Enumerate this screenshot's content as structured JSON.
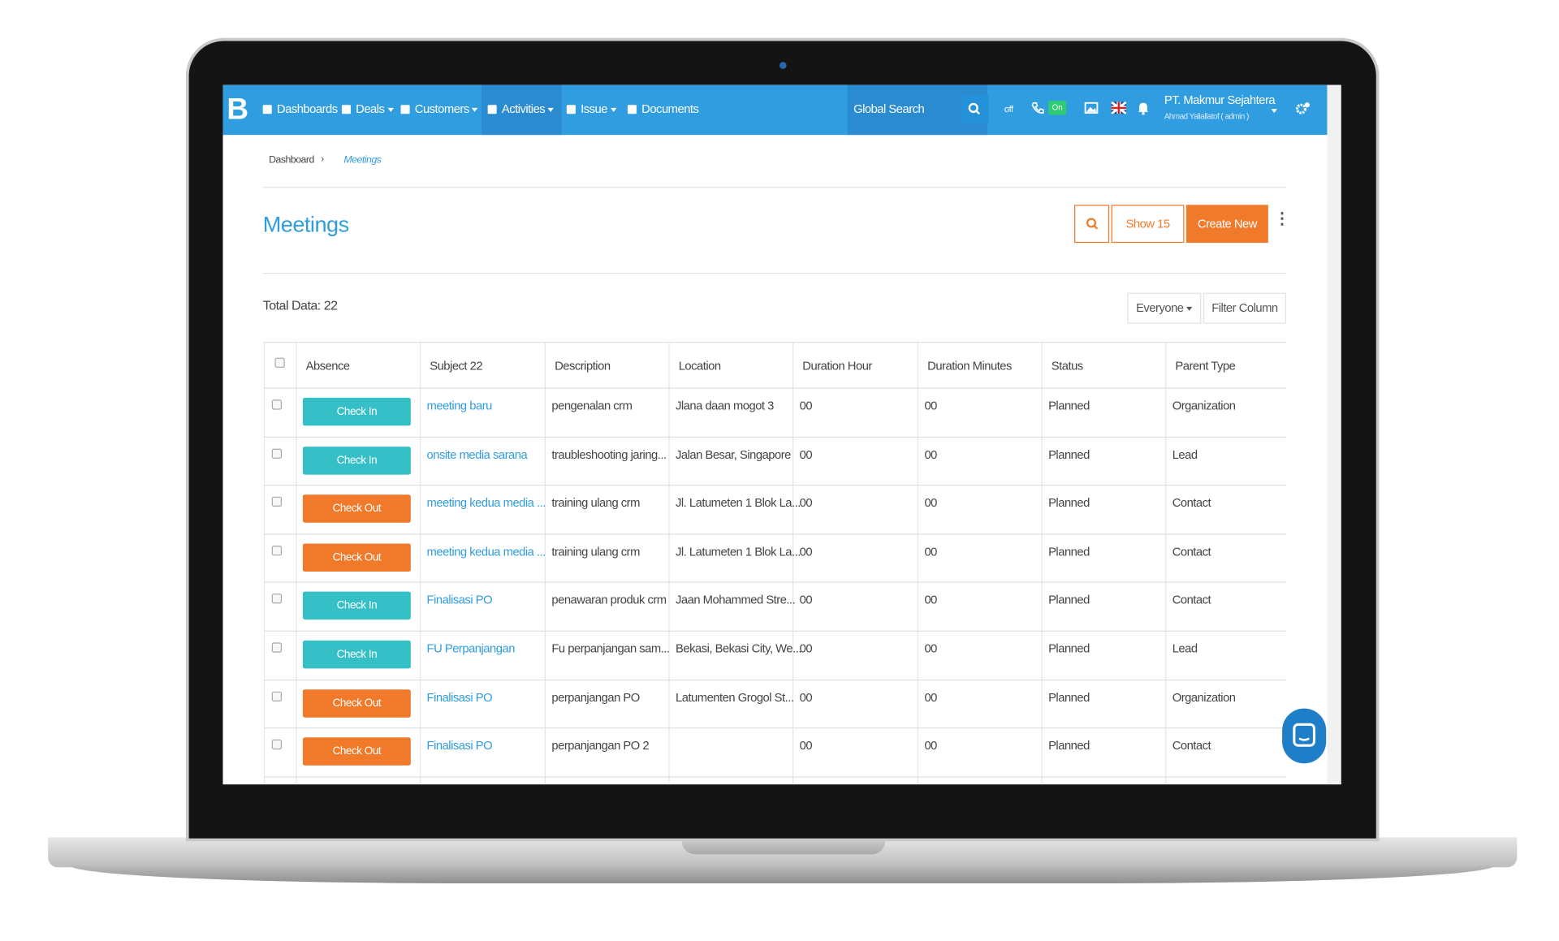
{
  "nav": {
    "logo": "B",
    "items": [
      "Dashboards",
      "Deals",
      "Customers",
      "Activities",
      "Issue",
      "Documents"
    ],
    "search": "Global Search",
    "toggle_off": "off",
    "toggle_on": "On",
    "company": "PT. Makmur Sejahtera",
    "user": "Ahmad Yaliallatof ( admin )"
  },
  "breadcrumb": [
    "Dashboard",
    "Meetings"
  ],
  "page": {
    "title": "Meetings",
    "show": "Show 15",
    "create": "Create New",
    "total": "Total Data: 22",
    "filter_owner": "Everyone",
    "filter_column": "Filter Column"
  },
  "table": {
    "headers": [
      "Absence",
      "Subject 22",
      "Description",
      "Location",
      "Duration Hour",
      "Duration Minutes",
      "Status",
      "Parent Type"
    ],
    "rows": [
      [
        "Check In",
        "meeting baru",
        "pengenalan crm",
        "Jlana daan mogot 3",
        "00",
        "00",
        "Planned",
        "Organization"
      ],
      [
        "Check In",
        "onsite media sarana",
        "traubleshooting jaring...",
        "Jalan Besar, Singapore",
        "00",
        "00",
        "Planned",
        "Lead"
      ],
      [
        "Check Out",
        "meeting kedua media ...",
        "training ulang crm",
        "Jl. Latumeten 1 Blok La...",
        "00",
        "00",
        "Planned",
        "Contact"
      ],
      [
        "Check Out",
        "meeting kedua media ...",
        "training ulang crm",
        "Jl. Latumeten 1 Blok La...",
        "00",
        "00",
        "Planned",
        "Contact"
      ],
      [
        "Check In",
        "Finalisasi PO",
        "penawaran produk crm",
        "Jaan Mohammed Stre...",
        "00",
        "00",
        "Planned",
        "Contact"
      ],
      [
        "Check In",
        "FU Perpanjangan",
        "Fu perpanjangan sam...",
        "Bekasi, Bekasi City, We...",
        "00",
        "00",
        "Planned",
        "Lead"
      ],
      [
        "Check Out",
        "Finalisasi PO",
        "perpanjangan PO",
        "Latumenten Grogol St...",
        "00",
        "00",
        "Planned",
        "Organization"
      ],
      [
        "Check Out",
        "Finalisasi PO",
        "perpanjangan PO 2",
        "",
        "00",
        "00",
        "Planned",
        "Contact"
      ]
    ]
  }
}
